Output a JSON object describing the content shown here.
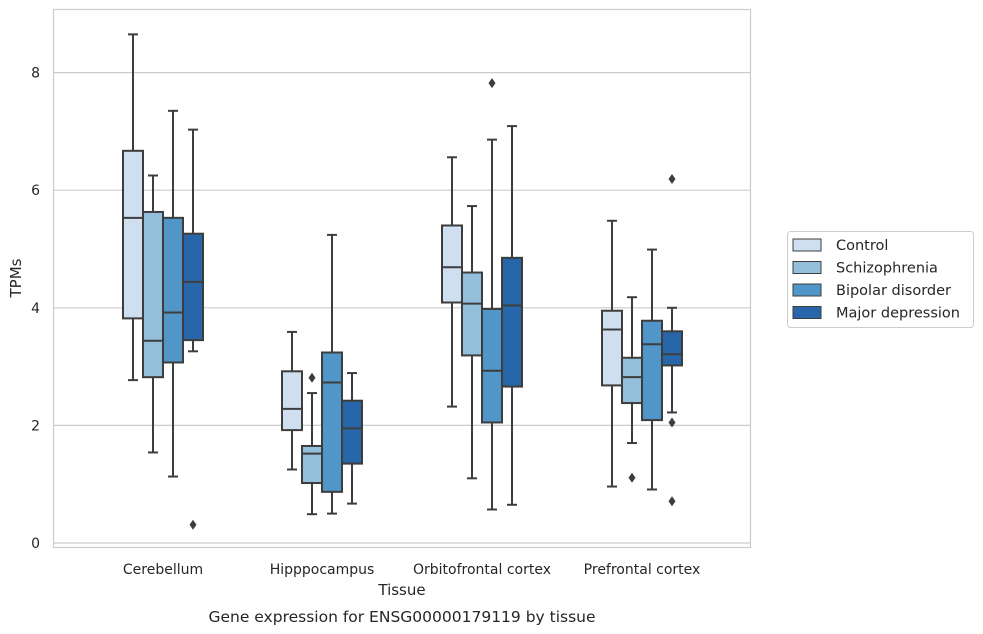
{
  "chart_data": {
    "type": "box",
    "caption": "Gene expression for ENSG00000179119 by tissue",
    "xlabel": "Tissue",
    "ylabel": "TPMs",
    "ylim": [
      -0.1,
      9.0
    ],
    "yticks": [
      0,
      2,
      4,
      6,
      8
    ],
    "grid": "horizontal",
    "legend_position": "right",
    "categories": [
      "Cerebellum",
      "Hipppocampus",
      "Orbitofrontal cortex",
      "Prefrontal cortex"
    ],
    "series": [
      {
        "name": "Control",
        "color": "#cfdff0",
        "boxes": [
          {
            "whislo": 2.77,
            "q1": 3.82,
            "med": 5.53,
            "q3": 6.67,
            "whishi": 8.65,
            "fliers": []
          },
          {
            "whislo": 1.25,
            "q1": 1.92,
            "med": 2.28,
            "q3": 2.92,
            "whishi": 3.59,
            "fliers": []
          },
          {
            "whislo": 2.32,
            "q1": 4.09,
            "med": 4.69,
            "q3": 5.4,
            "whishi": 6.56,
            "fliers": []
          },
          {
            "whislo": 0.96,
            "q1": 2.68,
            "med": 3.63,
            "q3": 3.95,
            "whishi": 5.48,
            "fliers": []
          }
        ]
      },
      {
        "name": "Schizophrenia",
        "color": "#93bfdb",
        "boxes": [
          {
            "whislo": 1.54,
            "q1": 2.82,
            "med": 3.44,
            "q3": 5.63,
            "whishi": 6.25,
            "fliers": []
          },
          {
            "whislo": 0.49,
            "q1": 1.02,
            "med": 1.52,
            "q3": 1.65,
            "whishi": 2.55,
            "fliers": [
              2.81
            ]
          },
          {
            "whislo": 1.1,
            "q1": 3.19,
            "med": 4.07,
            "q3": 4.6,
            "whishi": 5.73,
            "fliers": []
          },
          {
            "whislo": 1.7,
            "q1": 2.38,
            "med": 2.82,
            "q3": 3.15,
            "whishi": 4.18,
            "fliers": [
              1.11
            ]
          }
        ]
      },
      {
        "name": "Bipolar disorder",
        "color": "#5096c8",
        "boxes": [
          {
            "whislo": 1.13,
            "q1": 3.07,
            "med": 3.92,
            "q3": 5.53,
            "whishi": 7.35,
            "fliers": []
          },
          {
            "whislo": 0.5,
            "q1": 0.87,
            "med": 2.73,
            "q3": 3.24,
            "whishi": 5.24,
            "fliers": []
          },
          {
            "whislo": 0.57,
            "q1": 2.05,
            "med": 2.93,
            "q3": 3.98,
            "whishi": 6.86,
            "fliers": [
              7.82
            ]
          },
          {
            "whislo": 0.91,
            "q1": 2.09,
            "med": 3.38,
            "q3": 3.78,
            "whishi": 4.99,
            "fliers": []
          }
        ]
      },
      {
        "name": "Major depression",
        "color": "#2766a8",
        "boxes": [
          {
            "whislo": 3.26,
            "q1": 3.45,
            "med": 4.44,
            "q3": 5.26,
            "whishi": 7.03,
            "fliers": [
              0.31
            ]
          },
          {
            "whislo": 0.67,
            "q1": 1.35,
            "med": 1.95,
            "q3": 2.42,
            "whishi": 2.89,
            "fliers": []
          },
          {
            "whislo": 0.65,
            "q1": 2.66,
            "med": 4.04,
            "q3": 4.85,
            "whishi": 7.09,
            "fliers": []
          },
          {
            "whislo": 2.22,
            "q1": 3.02,
            "med": 3.21,
            "q3": 3.6,
            "whishi": 4.0,
            "fliers": [
              6.19,
              2.05,
              0.71
            ]
          }
        ]
      }
    ]
  }
}
